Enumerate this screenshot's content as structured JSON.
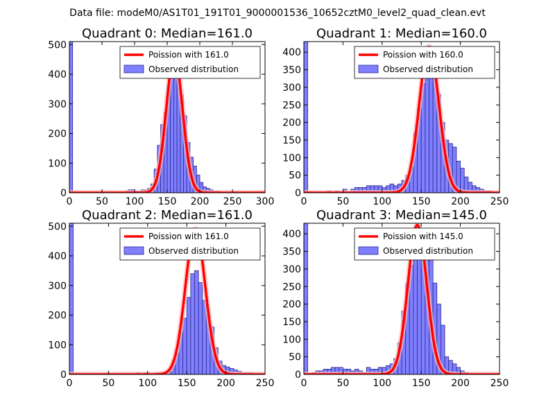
{
  "figure_title": "Data file: modeM0/AS1T01_191T01_9000001536_10652cztM0_level2_quad_clean.evt",
  "colors": {
    "bar": "#7f7fff",
    "bar_edge": "#2b2b8c",
    "curve": "#ff0000",
    "curve_glow": "#ffbbbb"
  },
  "chart_data": [
    {
      "type": "bar",
      "title": "Quadrant 0: Median=161.0",
      "legend": [
        "Poission with 161.0",
        "Observed distribution"
      ],
      "legend_position": "top-right",
      "xlim": [
        0,
        300
      ],
      "ylim": [
        0,
        510
      ],
      "xticks": [
        0,
        50,
        100,
        150,
        200,
        250,
        300
      ],
      "yticks": [
        0,
        100,
        200,
        300,
        400,
        500
      ],
      "bin_width": 5,
      "poisson_mean": 161,
      "poisson_peak": 460,
      "bars": [
        [
          0,
          510
        ],
        [
          85,
          5
        ],
        [
          90,
          10
        ],
        [
          95,
          10
        ],
        [
          100,
          5
        ],
        [
          105,
          5
        ],
        [
          110,
          10
        ],
        [
          115,
          10
        ],
        [
          120,
          15
        ],
        [
          125,
          30
        ],
        [
          130,
          80
        ],
        [
          135,
          160
        ],
        [
          140,
          230
        ],
        [
          145,
          270
        ],
        [
          150,
          360
        ],
        [
          155,
          400
        ],
        [
          160,
          410
        ],
        [
          165,
          380
        ],
        [
          170,
          330
        ],
        [
          175,
          260
        ],
        [
          180,
          170
        ],
        [
          185,
          120
        ],
        [
          190,
          90
        ],
        [
          195,
          60
        ],
        [
          200,
          35
        ],
        [
          205,
          20
        ],
        [
          210,
          15
        ],
        [
          215,
          10
        ],
        [
          220,
          5
        ],
        [
          225,
          5
        ]
      ]
    },
    {
      "type": "bar",
      "title": "Quadrant 1: Median=160.0",
      "legend": [
        "Poission with 160.0",
        "Observed distribution"
      ],
      "legend_position": "top-right",
      "xlim": [
        0,
        250
      ],
      "ylim": [
        0,
        430
      ],
      "xticks": [
        0,
        50,
        100,
        150,
        200,
        250
      ],
      "yticks": [
        0,
        50,
        100,
        150,
        200,
        250,
        300,
        350,
        400
      ],
      "bin_width": 5,
      "poisson_mean": 160,
      "poisson_peak": 415,
      "bars": [
        [
          0,
          430
        ],
        [
          30,
          5
        ],
        [
          40,
          5
        ],
        [
          50,
          10
        ],
        [
          60,
          10
        ],
        [
          65,
          15
        ],
        [
          70,
          15
        ],
        [
          75,
          15
        ],
        [
          80,
          20
        ],
        [
          85,
          20
        ],
        [
          90,
          20
        ],
        [
          95,
          20
        ],
        [
          100,
          15
        ],
        [
          105,
          20
        ],
        [
          110,
          25
        ],
        [
          115,
          20
        ],
        [
          120,
          25
        ],
        [
          125,
          35
        ],
        [
          130,
          50
        ],
        [
          135,
          75
        ],
        [
          140,
          170
        ],
        [
          145,
          240
        ],
        [
          150,
          310
        ],
        [
          155,
          350
        ],
        [
          160,
          370
        ],
        [
          165,
          330
        ],
        [
          170,
          280
        ],
        [
          175,
          200
        ],
        [
          180,
          150
        ],
        [
          185,
          140
        ],
        [
          190,
          130
        ],
        [
          195,
          90
        ],
        [
          200,
          70
        ],
        [
          205,
          45
        ],
        [
          210,
          30
        ],
        [
          215,
          20
        ],
        [
          220,
          15
        ],
        [
          225,
          10
        ],
        [
          230,
          5
        ],
        [
          235,
          5
        ]
      ]
    },
    {
      "type": "bar",
      "title": "Quadrant 2: Median=161.0",
      "legend": [
        "Poission with 161.0",
        "Observed distribution"
      ],
      "legend_position": "top-right",
      "xlim": [
        0,
        250
      ],
      "ylim": [
        0,
        510
      ],
      "xticks": [
        0,
        50,
        100,
        150,
        200,
        250
      ],
      "yticks": [
        0,
        100,
        200,
        300,
        400,
        500
      ],
      "bin_width": 5,
      "poisson_mean": 161,
      "poisson_peak": 490,
      "bars": [
        [
          0,
          510
        ],
        [
          85,
          5
        ],
        [
          95,
          5
        ],
        [
          110,
          5
        ],
        [
          115,
          5
        ],
        [
          120,
          5
        ],
        [
          125,
          10
        ],
        [
          130,
          30
        ],
        [
          135,
          70
        ],
        [
          140,
          140
        ],
        [
          145,
          190
        ],
        [
          150,
          260
        ],
        [
          155,
          340
        ],
        [
          160,
          350
        ],
        [
          165,
          310
        ],
        [
          170,
          250
        ],
        [
          175,
          200
        ],
        [
          180,
          160
        ],
        [
          185,
          90
        ],
        [
          190,
          45
        ],
        [
          195,
          30
        ],
        [
          200,
          25
        ],
        [
          205,
          20
        ],
        [
          210,
          15
        ],
        [
          215,
          10
        ],
        [
          220,
          5
        ],
        [
          225,
          5
        ],
        [
          230,
          5
        ]
      ]
    },
    {
      "type": "bar",
      "title": "Quadrant 3: Median=145.0",
      "legend": [
        "Poission with 145.0",
        "Observed distribution"
      ],
      "legend_position": "top-right",
      "xlim": [
        0,
        250
      ],
      "ylim": [
        0,
        430
      ],
      "xticks": [
        0,
        50,
        100,
        150,
        200,
        250
      ],
      "yticks": [
        0,
        50,
        100,
        150,
        200,
        250,
        300,
        350,
        400
      ],
      "bin_width": 5,
      "poisson_mean": 145,
      "poisson_peak": 425,
      "bars": [
        [
          0,
          430
        ],
        [
          10,
          5
        ],
        [
          15,
          10
        ],
        [
          20,
          10
        ],
        [
          25,
          15
        ],
        [
          30,
          15
        ],
        [
          35,
          20
        ],
        [
          40,
          20
        ],
        [
          45,
          20
        ],
        [
          50,
          15
        ],
        [
          55,
          15
        ],
        [
          60,
          10
        ],
        [
          65,
          15
        ],
        [
          70,
          10
        ],
        [
          75,
          5
        ],
        [
          80,
          20
        ],
        [
          85,
          15
        ],
        [
          90,
          15
        ],
        [
          95,
          20
        ],
        [
          100,
          20
        ],
        [
          105,
          25
        ],
        [
          110,
          30
        ],
        [
          115,
          45
        ],
        [
          120,
          90
        ],
        [
          125,
          180
        ],
        [
          130,
          260
        ],
        [
          135,
          310
        ],
        [
          140,
          340
        ],
        [
          145,
          350
        ],
        [
          150,
          340
        ],
        [
          155,
          360
        ],
        [
          160,
          330
        ],
        [
          165,
          260
        ],
        [
          170,
          200
        ],
        [
          175,
          140
        ],
        [
          180,
          50
        ],
        [
          185,
          40
        ],
        [
          190,
          30
        ],
        [
          195,
          20
        ],
        [
          200,
          10
        ],
        [
          205,
          5
        ]
      ]
    }
  ]
}
